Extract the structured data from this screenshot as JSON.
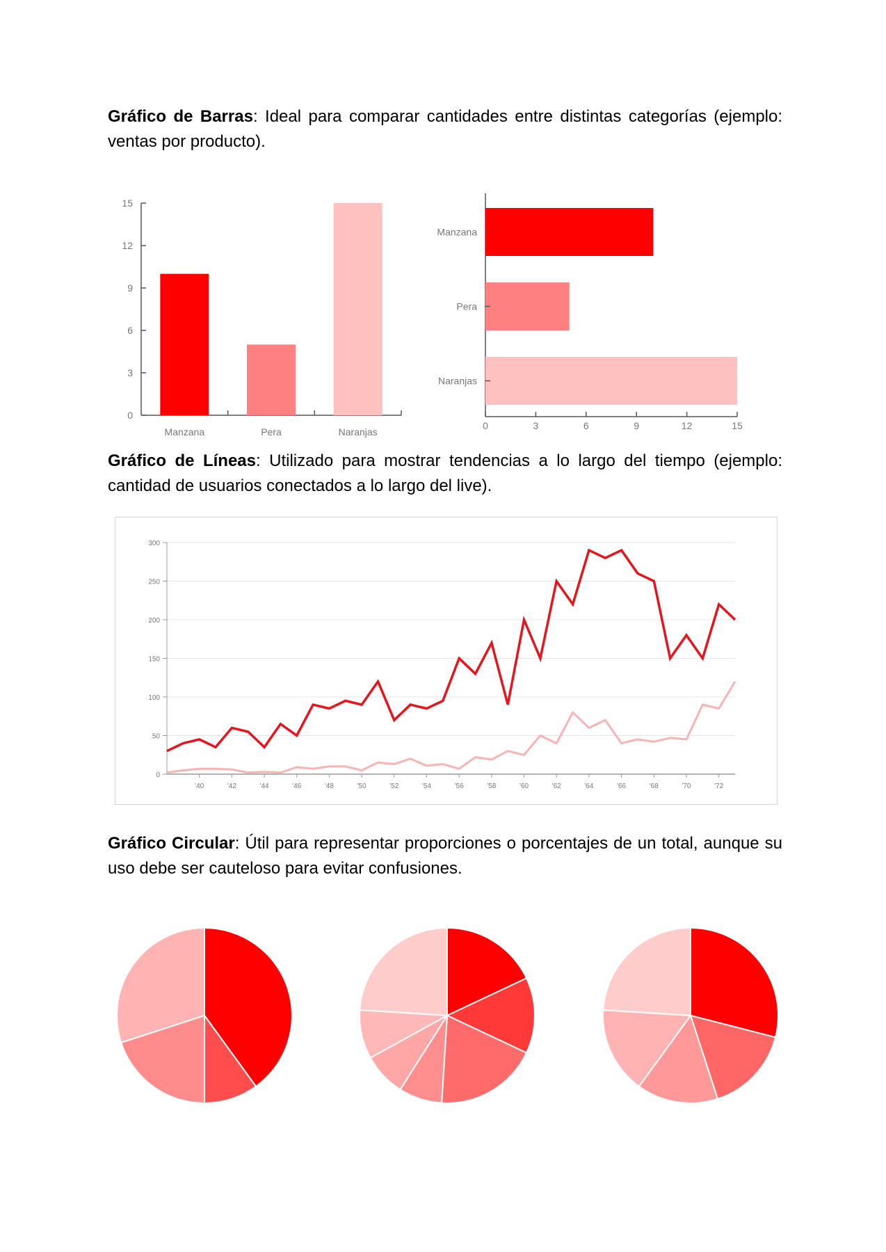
{
  "sections": {
    "bar": {
      "term": "Gráfico de Barras",
      "rest": ": Ideal para comparar cantidades entre distintas categorías (ejemplo: ventas por producto)."
    },
    "line": {
      "term": "Gráfico de Líneas",
      "rest": ": Utilizado para mostrar tendencias a lo largo del tiempo (ejemplo: cantidad de usuarios conectados a lo largo del live)."
    },
    "pie": {
      "term": "Gráfico Circular",
      "rest": ": Útil para representar proporciones o porcentajes de un total, aunque su uso debe ser cauteloso para evitar confusiones."
    }
  },
  "chart_data": [
    {
      "type": "bar",
      "orientation": "vertical",
      "categories": [
        "Manzana",
        "Pera",
        "Naranjas"
      ],
      "values": [
        10,
        5,
        15
      ],
      "colors": [
        "#ff0000",
        "#ff8080",
        "#ffc0c0"
      ],
      "ylim": [
        0,
        15
      ],
      "yticks": [
        "0",
        "3",
        "6",
        "9",
        "12",
        "15"
      ],
      "grid": false
    },
    {
      "type": "bar",
      "orientation": "horizontal",
      "categories": [
        "Manzana",
        "Pera",
        "Naranjas"
      ],
      "values": [
        10,
        5,
        15
      ],
      "colors": [
        "#ff0000",
        "#ff8080",
        "#ffc0c0"
      ],
      "xlim": [
        0,
        15
      ],
      "xticks": [
        "0",
        "3",
        "6",
        "9",
        "12",
        "15"
      ],
      "grid": false
    },
    {
      "type": "line",
      "x": [
        1938,
        1939,
        1940,
        1941,
        1942,
        1943,
        1944,
        1945,
        1946,
        1947,
        1948,
        1949,
        1950,
        1951,
        1952,
        1953,
        1954,
        1955,
        1956,
        1957,
        1958,
        1959,
        1960,
        1961,
        1962,
        1963,
        1964,
        1965,
        1966,
        1967,
        1968,
        1969,
        1970,
        1971,
        1972,
        1973
      ],
      "xticks": [
        "'40",
        "'42",
        "'44",
        "'46",
        "'48",
        "'50",
        "'52",
        "'54",
        "'56",
        "'58",
        "'60",
        "'62",
        "'64",
        "'66",
        "'68",
        "'70",
        "'72"
      ],
      "ylim": [
        0,
        300
      ],
      "yticks": [
        "0",
        "50",
        "100",
        "150",
        "200",
        "250",
        "300"
      ],
      "grid": true,
      "series": [
        {
          "color": "#e8141c",
          "values": [
            30,
            40,
            45,
            35,
            60,
            55,
            35,
            65,
            50,
            90,
            85,
            95,
            90,
            120,
            70,
            90,
            85,
            95,
            150,
            130,
            170,
            90,
            200,
            150,
            250,
            220,
            290,
            280,
            290,
            260,
            250,
            150,
            180,
            150,
            220,
            200
          ]
        },
        {
          "color": "#f9b3b3",
          "values": [
            2,
            5,
            7,
            7,
            6,
            2,
            3,
            2,
            9,
            7,
            10,
            10,
            5,
            15,
            13,
            20,
            11,
            13,
            7,
            22,
            19,
            30,
            25,
            50,
            40,
            80,
            60,
            70,
            40,
            45,
            42,
            47,
            45,
            90,
            85,
            120
          ]
        }
      ]
    },
    {
      "type": "pie",
      "values": [
        40,
        10,
        20,
        30
      ],
      "colors": [
        "#ff0000",
        "#ff4d4d",
        "#ff8c8c",
        "#ffb3b3"
      ]
    },
    {
      "type": "pie",
      "values": [
        18,
        14,
        19,
        8,
        8,
        9,
        24
      ],
      "colors": [
        "#ff0000",
        "#ff3838",
        "#ff6b6b",
        "#ff8f8f",
        "#ffa6a6",
        "#ffb8b8",
        "#ffcccc"
      ]
    },
    {
      "type": "pie",
      "values": [
        29,
        16,
        15,
        16,
        24
      ],
      "colors": [
        "#ff0000",
        "#ff6666",
        "#ff9999",
        "#ffb3b3",
        "#ffcccc"
      ]
    }
  ]
}
